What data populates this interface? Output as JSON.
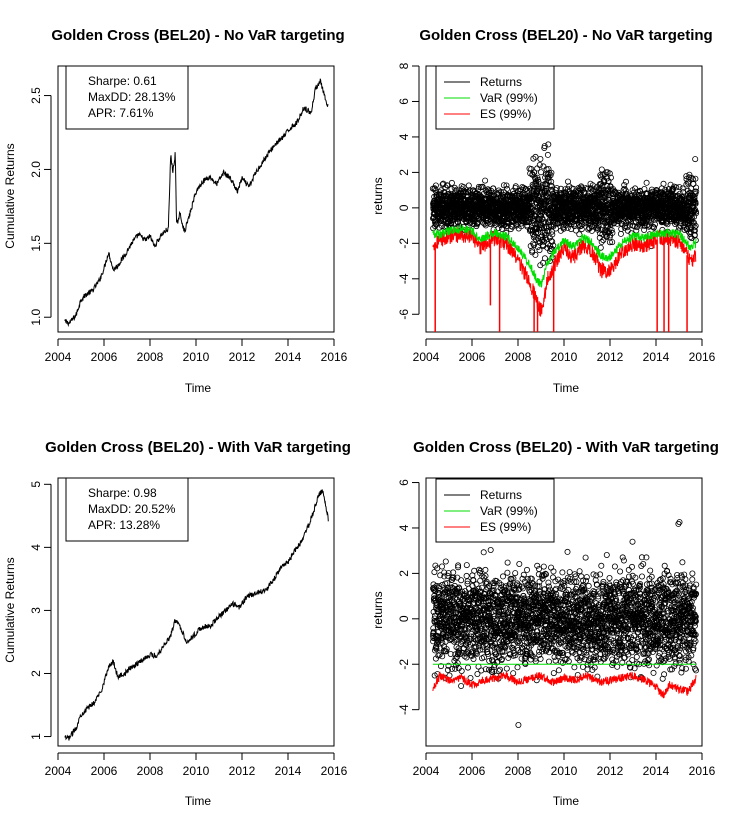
{
  "chart_data": [
    {
      "type": "line",
      "title": "Golden Cross (BEL20) - No VaR targeting",
      "xlabel": "Time",
      "ylabel": "Cumulative Returns",
      "xlim": [
        2004,
        2016
      ],
      "ylim": [
        0.9,
        2.7
      ],
      "xticks": [
        2004,
        2006,
        2008,
        2010,
        2012,
        2014,
        2016
      ],
      "yticks": [
        1.0,
        1.5,
        2.0,
        2.5
      ],
      "ytick_labels": [
        "1.0",
        "1.5",
        "2.0",
        "2.5"
      ],
      "stats": [
        "Sharpe: 0.61",
        "MaxDD: 28.13%",
        "APR: 7.61%"
      ],
      "series": [
        {
          "color": "#000000",
          "x": [
            2004.3,
            2004.5,
            2004.8,
            2005.0,
            2005.2,
            2005.5,
            2005.8,
            2006.0,
            2006.2,
            2006.4,
            2006.6,
            2006.9,
            2007.2,
            2007.5,
            2007.8,
            2008.0,
            2008.2,
            2008.5,
            2008.8,
            2008.9,
            2009.0,
            2009.1,
            2009.15,
            2009.3,
            2009.5,
            2009.7,
            2010.0,
            2010.3,
            2010.6,
            2010.9,
            2011.2,
            2011.5,
            2011.8,
            2012.0,
            2012.3,
            2012.6,
            2012.9,
            2013.2,
            2013.5,
            2013.8,
            2014.1,
            2014.4,
            2014.7,
            2015.0,
            2015.2,
            2015.4,
            2015.55,
            2015.65,
            2015.75
          ],
          "y": [
            0.97,
            0.96,
            1.02,
            1.12,
            1.15,
            1.18,
            1.25,
            1.33,
            1.44,
            1.32,
            1.35,
            1.42,
            1.5,
            1.56,
            1.52,
            1.55,
            1.48,
            1.56,
            1.6,
            2.1,
            1.98,
            2.12,
            1.62,
            1.7,
            1.58,
            1.68,
            1.85,
            1.92,
            1.95,
            1.9,
            1.98,
            1.94,
            1.85,
            1.94,
            1.88,
            1.98,
            2.05,
            2.12,
            2.18,
            2.22,
            2.28,
            2.32,
            2.42,
            2.38,
            2.55,
            2.6,
            2.52,
            2.45,
            2.42
          ]
        }
      ]
    },
    {
      "type": "scatter",
      "title": "Golden Cross (BEL20) - No VaR targeting",
      "xlabel": "Time",
      "ylabel": "returns",
      "xlim": [
        2004,
        2016
      ],
      "ylim": [
        -7,
        8
      ],
      "xticks": [
        2004,
        2006,
        2008,
        2010,
        2012,
        2014,
        2016
      ],
      "yticks": [
        -6,
        -4,
        -2,
        0,
        2,
        4,
        6,
        8
      ],
      "legend": {
        "position": "top-left",
        "entries": [
          "Returns",
          "VaR (99%)",
          "ES (99%)"
        ],
        "colors": [
          "#000000",
          "#00dd00",
          "#ff0000"
        ]
      },
      "returns_sd": 0.55,
      "var_series": {
        "color": "#00dd00",
        "x": [
          2004.3,
          2004.6,
          2005.0,
          2005.5,
          2006.0,
          2006.3,
          2006.6,
          2007.0,
          2007.5,
          2008.0,
          2008.5,
          2008.8,
          2009.0,
          2009.3,
          2009.6,
          2010.0,
          2010.4,
          2010.8,
          2011.2,
          2011.6,
          2012.0,
          2012.5,
          2013.0,
          2013.5,
          2014.0,
          2014.5,
          2015.0,
          2015.5,
          2015.75
        ],
        "y": [
          -1.4,
          -1.5,
          -1.3,
          -1.2,
          -1.3,
          -1.8,
          -1.6,
          -1.4,
          -1.6,
          -2.3,
          -3.2,
          -4.0,
          -4.4,
          -3.0,
          -2.5,
          -1.8,
          -2.2,
          -1.7,
          -1.9,
          -2.7,
          -2.8,
          -2.0,
          -1.6,
          -1.7,
          -1.5,
          -1.4,
          -1.5,
          -2.2,
          -2.0
        ]
      },
      "es_series": {
        "color": "#ff0000",
        "x": [
          2004.3,
          2004.6,
          2005.0,
          2005.5,
          2006.0,
          2006.3,
          2006.6,
          2007.0,
          2007.5,
          2008.0,
          2008.5,
          2008.8,
          2009.0,
          2009.3,
          2009.6,
          2010.0,
          2010.4,
          2010.8,
          2011.2,
          2011.6,
          2012.0,
          2012.5,
          2013.0,
          2013.5,
          2014.0,
          2014.5,
          2015.0,
          2015.5,
          2015.75
        ],
        "y": [
          -2.0,
          -1.8,
          -1.6,
          -1.5,
          -1.6,
          -2.3,
          -2.0,
          -1.7,
          -2.0,
          -2.9,
          -4.2,
          -5.2,
          -5.8,
          -4.0,
          -3.2,
          -2.2,
          -2.8,
          -2.1,
          -2.4,
          -3.5,
          -3.6,
          -2.5,
          -2.0,
          -2.1,
          -1.8,
          -1.7,
          -1.9,
          -3.0,
          -2.6
        ]
      },
      "es_spikes": [
        {
          "x": 2004.4,
          "y": -7
        },
        {
          "x": 2006.8,
          "y": -5.5
        },
        {
          "x": 2007.2,
          "y": -7
        },
        {
          "x": 2008.7,
          "y": -7
        },
        {
          "x": 2008.85,
          "y": -7
        },
        {
          "x": 2009.55,
          "y": -7
        },
        {
          "x": 2014.05,
          "y": -7
        },
        {
          "x": 2014.35,
          "y": -7
        },
        {
          "x": 2014.55,
          "y": -7
        },
        {
          "x": 2015.35,
          "y": -7
        }
      ]
    },
    {
      "type": "line",
      "title": "Golden Cross (BEL20) - With VaR targeting",
      "xlabel": "Time",
      "ylabel": "Cumulative Returns",
      "xlim": [
        2004,
        2016
      ],
      "ylim": [
        0.85,
        5.1
      ],
      "xticks": [
        2004,
        2006,
        2008,
        2010,
        2012,
        2014,
        2016
      ],
      "yticks": [
        1,
        2,
        3,
        4,
        5
      ],
      "ytick_labels": [
        "1",
        "2",
        "3",
        "4",
        "5"
      ],
      "stats": [
        "Sharpe: 0.98",
        "MaxDD: 20.52%",
        "APR: 13.28%"
      ],
      "series": [
        {
          "color": "#000000",
          "x": [
            2004.3,
            2004.5,
            2004.8,
            2005.0,
            2005.3,
            2005.6,
            2005.9,
            2006.2,
            2006.4,
            2006.6,
            2006.9,
            2007.2,
            2007.6,
            2008.0,
            2008.3,
            2008.6,
            2008.9,
            2009.1,
            2009.3,
            2009.6,
            2009.9,
            2010.2,
            2010.6,
            2011.0,
            2011.3,
            2011.6,
            2011.9,
            2012.2,
            2012.5,
            2012.8,
            2013.1,
            2013.4,
            2013.7,
            2014.0,
            2014.3,
            2014.6,
            2014.9,
            2015.1,
            2015.3,
            2015.5,
            2015.65,
            2015.75
          ],
          "y": [
            0.97,
            0.98,
            1.15,
            1.35,
            1.45,
            1.55,
            1.75,
            2.1,
            2.2,
            1.95,
            2.0,
            2.1,
            2.2,
            2.3,
            2.28,
            2.45,
            2.6,
            2.85,
            2.75,
            2.5,
            2.6,
            2.72,
            2.75,
            2.9,
            3.0,
            3.1,
            3.05,
            3.22,
            3.25,
            3.3,
            3.35,
            3.5,
            3.7,
            3.75,
            3.95,
            4.1,
            4.35,
            4.55,
            4.8,
            4.9,
            4.65,
            4.45
          ]
        }
      ]
    },
    {
      "type": "scatter",
      "title": "Golden Cross (BEL20) - With VaR targeting",
      "xlabel": "Time",
      "ylabel": "returns",
      "xlim": [
        2004,
        2016
      ],
      "ylim": [
        -5.6,
        6.2
      ],
      "xticks": [
        2004,
        2006,
        2008,
        2010,
        2012,
        2014,
        2016
      ],
      "yticks": [
        -4,
        -2,
        0,
        2,
        4,
        6
      ],
      "legend": {
        "position": "top-left",
        "entries": [
          "Returns",
          "VaR (99%)",
          "ES (99%)"
        ],
        "colors": [
          "#000000",
          "#00dd00",
          "#ff0000"
        ]
      },
      "returns_sd": 1.0,
      "var_series": {
        "color": "#00dd00",
        "x": [
          2004.3,
          2015.75
        ],
        "y": [
          -2.0,
          -2.0
        ]
      },
      "es_series": {
        "color": "#ff0000",
        "x": [
          2004.3,
          2004.6,
          2005.0,
          2005.5,
          2006.0,
          2006.5,
          2007.0,
          2007.5,
          2008.0,
          2008.5,
          2009.0,
          2009.5,
          2010.0,
          2010.5,
          2011.0,
          2011.5,
          2012.0,
          2012.5,
          2013.0,
          2013.5,
          2014.0,
          2014.3,
          2014.6,
          2015.0,
          2015.4,
          2015.75
        ],
        "y": [
          -3.1,
          -2.5,
          -2.7,
          -2.6,
          -2.9,
          -2.7,
          -2.6,
          -2.5,
          -2.8,
          -2.6,
          -2.5,
          -2.8,
          -2.6,
          -2.7,
          -2.5,
          -2.8,
          -2.7,
          -2.6,
          -2.5,
          -2.7,
          -3.0,
          -3.4,
          -2.9,
          -3.1,
          -3.2,
          -2.6
        ]
      }
    }
  ]
}
